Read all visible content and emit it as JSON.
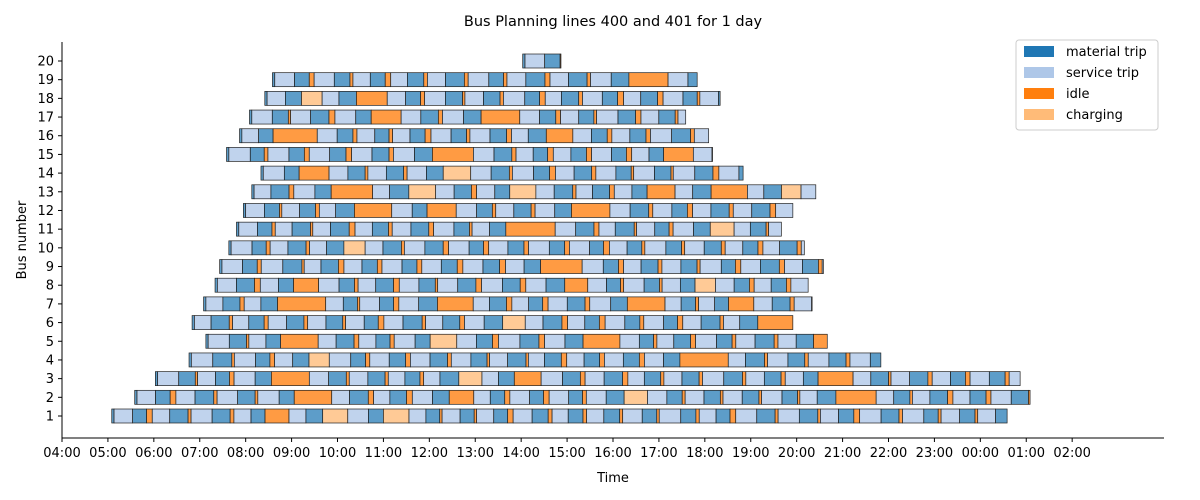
{
  "chart_data": {
    "type": "gantt",
    "title": "Bus Planning lines 400 and 401 for 1 day",
    "xlabel": "Time",
    "ylabel": "Bus number",
    "x_ticks": [
      "04:00",
      "05:00",
      "06:00",
      "07:00",
      "08:00",
      "09:00",
      "10:00",
      "11:00",
      "12:00",
      "13:00",
      "14:00",
      "15:00",
      "16:00",
      "17:00",
      "18:00",
      "19:00",
      "20:00",
      "21:00",
      "22:00",
      "23:00",
      "00:00",
      "01:00",
      "02:00"
    ],
    "x_range_hours": [
      4,
      28
    ],
    "y_ticks": [
      "1",
      "2",
      "3",
      "4",
      "5",
      "6",
      "7",
      "8",
      "9",
      "10",
      "11",
      "12",
      "13",
      "14",
      "15",
      "16",
      "17",
      "18",
      "19",
      "20"
    ],
    "legend": [
      {
        "key": "material",
        "label": "material trip",
        "color": "#1f77b4"
      },
      {
        "key": "service",
        "label": "service trip",
        "color": "#aec7e8"
      },
      {
        "key": "idle",
        "label": "idle",
        "color": "#ff7f0e"
      },
      {
        "key": "charging",
        "label": "charging",
        "color": "#ffbb78"
      }
    ],
    "legend_position": "upper right",
    "grid": false,
    "buses": [
      {
        "bus": 20,
        "start": "14:02",
        "end": "14:52"
      },
      {
        "bus": 19,
        "start": "08:35",
        "end": "17:50"
      },
      {
        "bus": 18,
        "start": "08:25",
        "end": "18:20"
      },
      {
        "bus": 17,
        "start": "08:05",
        "end": "17:35"
      },
      {
        "bus": 16,
        "start": "07:52",
        "end": "18:05"
      },
      {
        "bus": 15,
        "start": "07:35",
        "end": "18:10"
      },
      {
        "bus": 14,
        "start": "08:20",
        "end": "18:50"
      },
      {
        "bus": 13,
        "start": "08:08",
        "end": "20:25"
      },
      {
        "bus": 12,
        "start": "07:57",
        "end": "19:55"
      },
      {
        "bus": 11,
        "start": "07:48",
        "end": "19:40"
      },
      {
        "bus": 10,
        "start": "07:38",
        "end": "20:10"
      },
      {
        "bus": 9,
        "start": "07:26",
        "end": "20:35"
      },
      {
        "bus": 8,
        "start": "07:20",
        "end": "20:15"
      },
      {
        "bus": 7,
        "start": "07:05",
        "end": "20:20"
      },
      {
        "bus": 6,
        "start": "06:50",
        "end": "19:55"
      },
      {
        "bus": 5,
        "start": "07:08",
        "end": "20:40"
      },
      {
        "bus": 4,
        "start": "06:46",
        "end": "21:50"
      },
      {
        "bus": 3,
        "start": "06:02",
        "end": "00:52"
      },
      {
        "bus": 2,
        "start": "05:35",
        "end": "01:05"
      },
      {
        "bus": 1,
        "start": "05:05",
        "end": "00:35"
      }
    ]
  }
}
